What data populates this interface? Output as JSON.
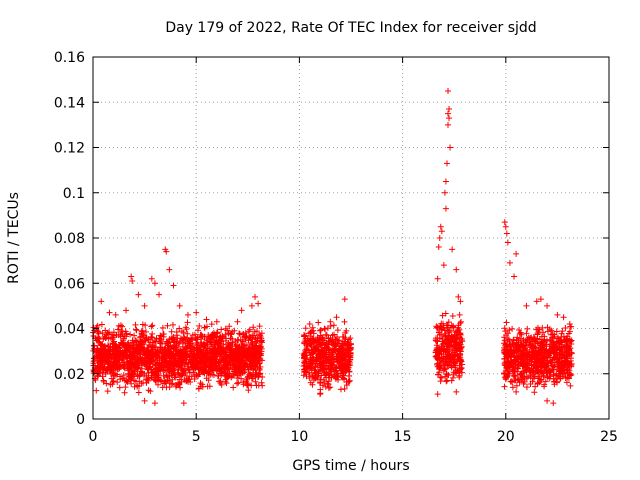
{
  "chart_data": {
    "type": "scatter",
    "title": "Day 179 of 2022, Rate Of TEC Index for receiver sjdd",
    "xlabel": "GPS time / hours",
    "ylabel": "ROTI / TECUs",
    "xlim": [
      0,
      25
    ],
    "ylim": [
      0,
      0.16
    ],
    "x_ticks": [
      0,
      5,
      10,
      15,
      20,
      25
    ],
    "x_tick_labels": [
      "0",
      "5",
      "10",
      "15",
      "20",
      "25"
    ],
    "y_ticks": [
      0,
      0.02,
      0.04,
      0.06,
      0.08,
      0.1,
      0.12,
      0.14,
      0.16
    ],
    "y_tick_labels": [
      "0",
      "0.02",
      "0.04",
      "0.06",
      "0.08",
      "0.1",
      "0.12",
      "0.14",
      "0.16"
    ],
    "grid": true,
    "marker": "plus",
    "marker_color": "#ff0000",
    "series": [
      {
        "name": "ROTI",
        "segments": [
          {
            "x_start": 0.0,
            "x_end": 8.2,
            "y_typical_min": 0.01,
            "y_typical_max": 0.04
          },
          {
            "x_start": 10.2,
            "x_end": 12.5,
            "y_typical_min": 0.01,
            "y_typical_max": 0.04
          },
          {
            "x_start": 16.6,
            "x_end": 17.9,
            "y_typical_min": 0.012,
            "y_typical_max": 0.045
          },
          {
            "x_start": 19.9,
            "x_end": 23.2,
            "y_typical_min": 0.01,
            "y_typical_max": 0.04
          }
        ],
        "points": [
          [
            0.4,
            0.052
          ],
          [
            0.8,
            0.047
          ],
          [
            1.1,
            0.046
          ],
          [
            1.6,
            0.048
          ],
          [
            1.85,
            0.063
          ],
          [
            1.9,
            0.061
          ],
          [
            2.2,
            0.055
          ],
          [
            2.5,
            0.05
          ],
          [
            2.85,
            0.062
          ],
          [
            3.0,
            0.06
          ],
          [
            3.2,
            0.055
          ],
          [
            3.5,
            0.075
          ],
          [
            3.55,
            0.074
          ],
          [
            3.7,
            0.066
          ],
          [
            3.9,
            0.059
          ],
          [
            4.2,
            0.05
          ],
          [
            4.6,
            0.046
          ],
          [
            5.0,
            0.047
          ],
          [
            5.5,
            0.044
          ],
          [
            6.0,
            0.043
          ],
          [
            6.6,
            0.041
          ],
          [
            7.0,
            0.043
          ],
          [
            7.2,
            0.048
          ],
          [
            7.7,
            0.05
          ],
          [
            7.85,
            0.054
          ],
          [
            8.0,
            0.051
          ],
          [
            2.5,
            0.008
          ],
          [
            3.0,
            0.007
          ],
          [
            4.4,
            0.007
          ],
          [
            10.5,
            0.042
          ],
          [
            11.0,
            0.039
          ],
          [
            11.5,
            0.043
          ],
          [
            11.8,
            0.045
          ],
          [
            12.2,
            0.053
          ],
          [
            11.0,
            0.011
          ],
          [
            12.3,
            0.015
          ],
          [
            16.7,
            0.062
          ],
          [
            16.75,
            0.076
          ],
          [
            16.8,
            0.08
          ],
          [
            16.85,
            0.085
          ],
          [
            16.9,
            0.083
          ],
          [
            17.0,
            0.068
          ],
          [
            17.05,
            0.1
          ],
          [
            17.1,
            0.093
          ],
          [
            17.1,
            0.105
          ],
          [
            17.15,
            0.113
          ],
          [
            17.2,
            0.13
          ],
          [
            17.2,
            0.135
          ],
          [
            17.25,
            0.137
          ],
          [
            17.25,
            0.133
          ],
          [
            17.2,
            0.145
          ],
          [
            17.3,
            0.12
          ],
          [
            17.4,
            0.075
          ],
          [
            17.6,
            0.066
          ],
          [
            17.7,
            0.054
          ],
          [
            17.8,
            0.052
          ],
          [
            16.7,
            0.011
          ],
          [
            17.6,
            0.012
          ],
          [
            19.95,
            0.087
          ],
          [
            20.0,
            0.085
          ],
          [
            20.05,
            0.082
          ],
          [
            20.1,
            0.078
          ],
          [
            20.2,
            0.069
          ],
          [
            20.4,
            0.063
          ],
          [
            20.5,
            0.073
          ],
          [
            21.0,
            0.05
          ],
          [
            21.5,
            0.052
          ],
          [
            21.7,
            0.053
          ],
          [
            22.0,
            0.05
          ],
          [
            22.5,
            0.046
          ],
          [
            22.8,
            0.045
          ],
          [
            23.1,
            0.042
          ],
          [
            20.5,
            0.012
          ],
          [
            22.0,
            0.008
          ],
          [
            22.3,
            0.007
          ]
        ]
      }
    ]
  }
}
